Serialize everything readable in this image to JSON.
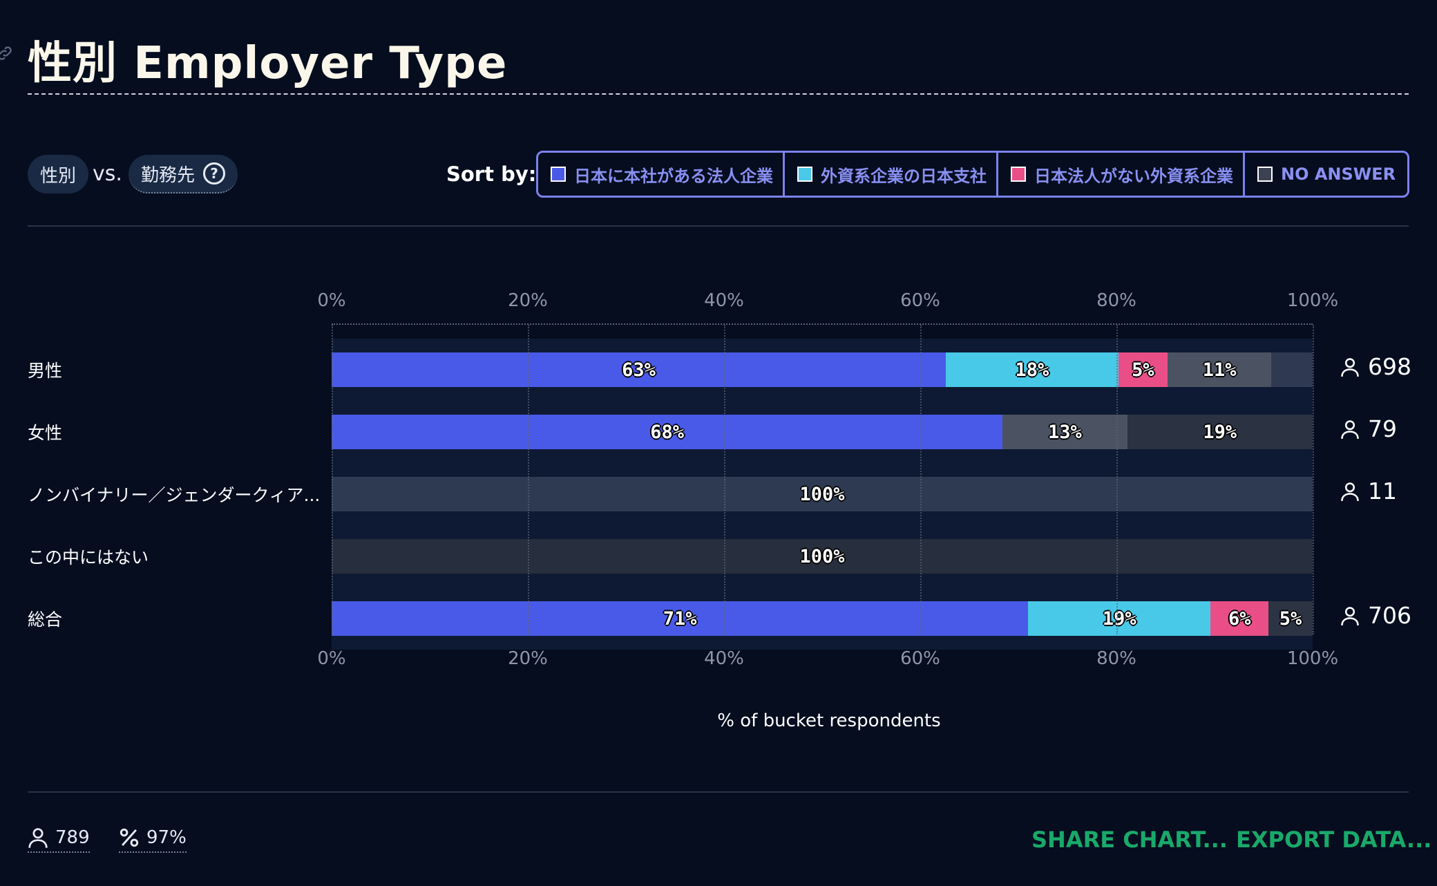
{
  "title": "性別 Employer Type",
  "filters": {
    "row_var": "性別",
    "vs": "vs.",
    "col_var": "勤務先",
    "help": "?"
  },
  "sort": {
    "label": "Sort by:",
    "options": [
      {
        "label": "日本に本社がある法人企業",
        "color": "#4a5ae8"
      },
      {
        "label": "外資系企業の日本支社",
        "color": "#48c9e8"
      },
      {
        "label": "日本法人がない外資系企業",
        "color": "#e94f86"
      },
      {
        "label": "NO ANSWER",
        "color": "#3b4252"
      }
    ]
  },
  "colors": {
    "jp_hq": "#4a5ae8",
    "foreign_jp_branch": "#48c9e8",
    "foreign_no_jp": "#e94f86",
    "no_answer": "#4b5261",
    "other": "#2f3a52",
    "background": "#050d1f",
    "action": "#19a96a"
  },
  "chart_data": {
    "type": "bar",
    "orientation": "horizontal",
    "stacked": true,
    "title": "性別 Employer Type",
    "xlabel": "% of bucket respondents",
    "xlim": [
      0,
      100
    ],
    "x_ticks": [
      "0%",
      "20%",
      "40%",
      "60%",
      "80%",
      "100%"
    ],
    "categories": [
      "男性",
      "女性",
      "ノンバイナリー／ジェンダークィア...",
      "この中にはない",
      "総合"
    ],
    "counts": [
      "698",
      "79",
      "11",
      "",
      "706"
    ],
    "rows": [
      {
        "category": "男性",
        "segments": [
          {
            "series": "日本に本社がある法人企業",
            "value": 62.6,
            "label": "63%",
            "color": "#4a5ae8"
          },
          {
            "series": "外資系企業の日本支社",
            "value": 17.6,
            "label": "18%",
            "color": "#48c9e8"
          },
          {
            "series": "日本法人がない外資系企業",
            "value": 5.0,
            "label": "5%",
            "color": "#e94f86"
          },
          {
            "series": "NO ANSWER",
            "value": 10.6,
            "label": "11%",
            "color": "#4b5261"
          },
          {
            "series": "",
            "value": 4.2,
            "label": "",
            "color": "#2f3a52"
          }
        ]
      },
      {
        "category": "女性",
        "segments": [
          {
            "series": "日本に本社がある法人企業",
            "value": 68.4,
            "label": "68%",
            "color": "#4a5ae8"
          },
          {
            "series": "NO ANSWER",
            "value": 12.7,
            "label": "13%",
            "color": "#4b5261"
          },
          {
            "series": "",
            "value": 18.9,
            "label": "19%",
            "color": "#2b3242"
          }
        ]
      },
      {
        "category": "ノンバイナリー／ジェンダークィア...",
        "segments": [
          {
            "series": "",
            "value": 100,
            "label": "100%",
            "color": "#2e3a52"
          }
        ]
      },
      {
        "category": "この中にはない",
        "segments": [
          {
            "series": "",
            "value": 100,
            "label": "100%",
            "color": "#272e3d"
          }
        ]
      },
      {
        "category": "総合",
        "segments": [
          {
            "series": "日本に本社がある法人企業",
            "value": 71.0,
            "label": "71%",
            "color": "#4a5ae8"
          },
          {
            "series": "外資系企業の日本支社",
            "value": 18.6,
            "label": "19%",
            "color": "#48c9e8"
          },
          {
            "series": "日本法人がない外資系企業",
            "value": 5.9,
            "label": "6%",
            "color": "#e94f86"
          },
          {
            "series": "NO ANSWER",
            "value": 4.5,
            "label": "5%",
            "color": "#2c3444"
          }
        ]
      }
    ]
  },
  "footer": {
    "respondents": "789",
    "percent": "97%",
    "share": "SHARE CHART...",
    "export": "EXPORT DATA..."
  }
}
